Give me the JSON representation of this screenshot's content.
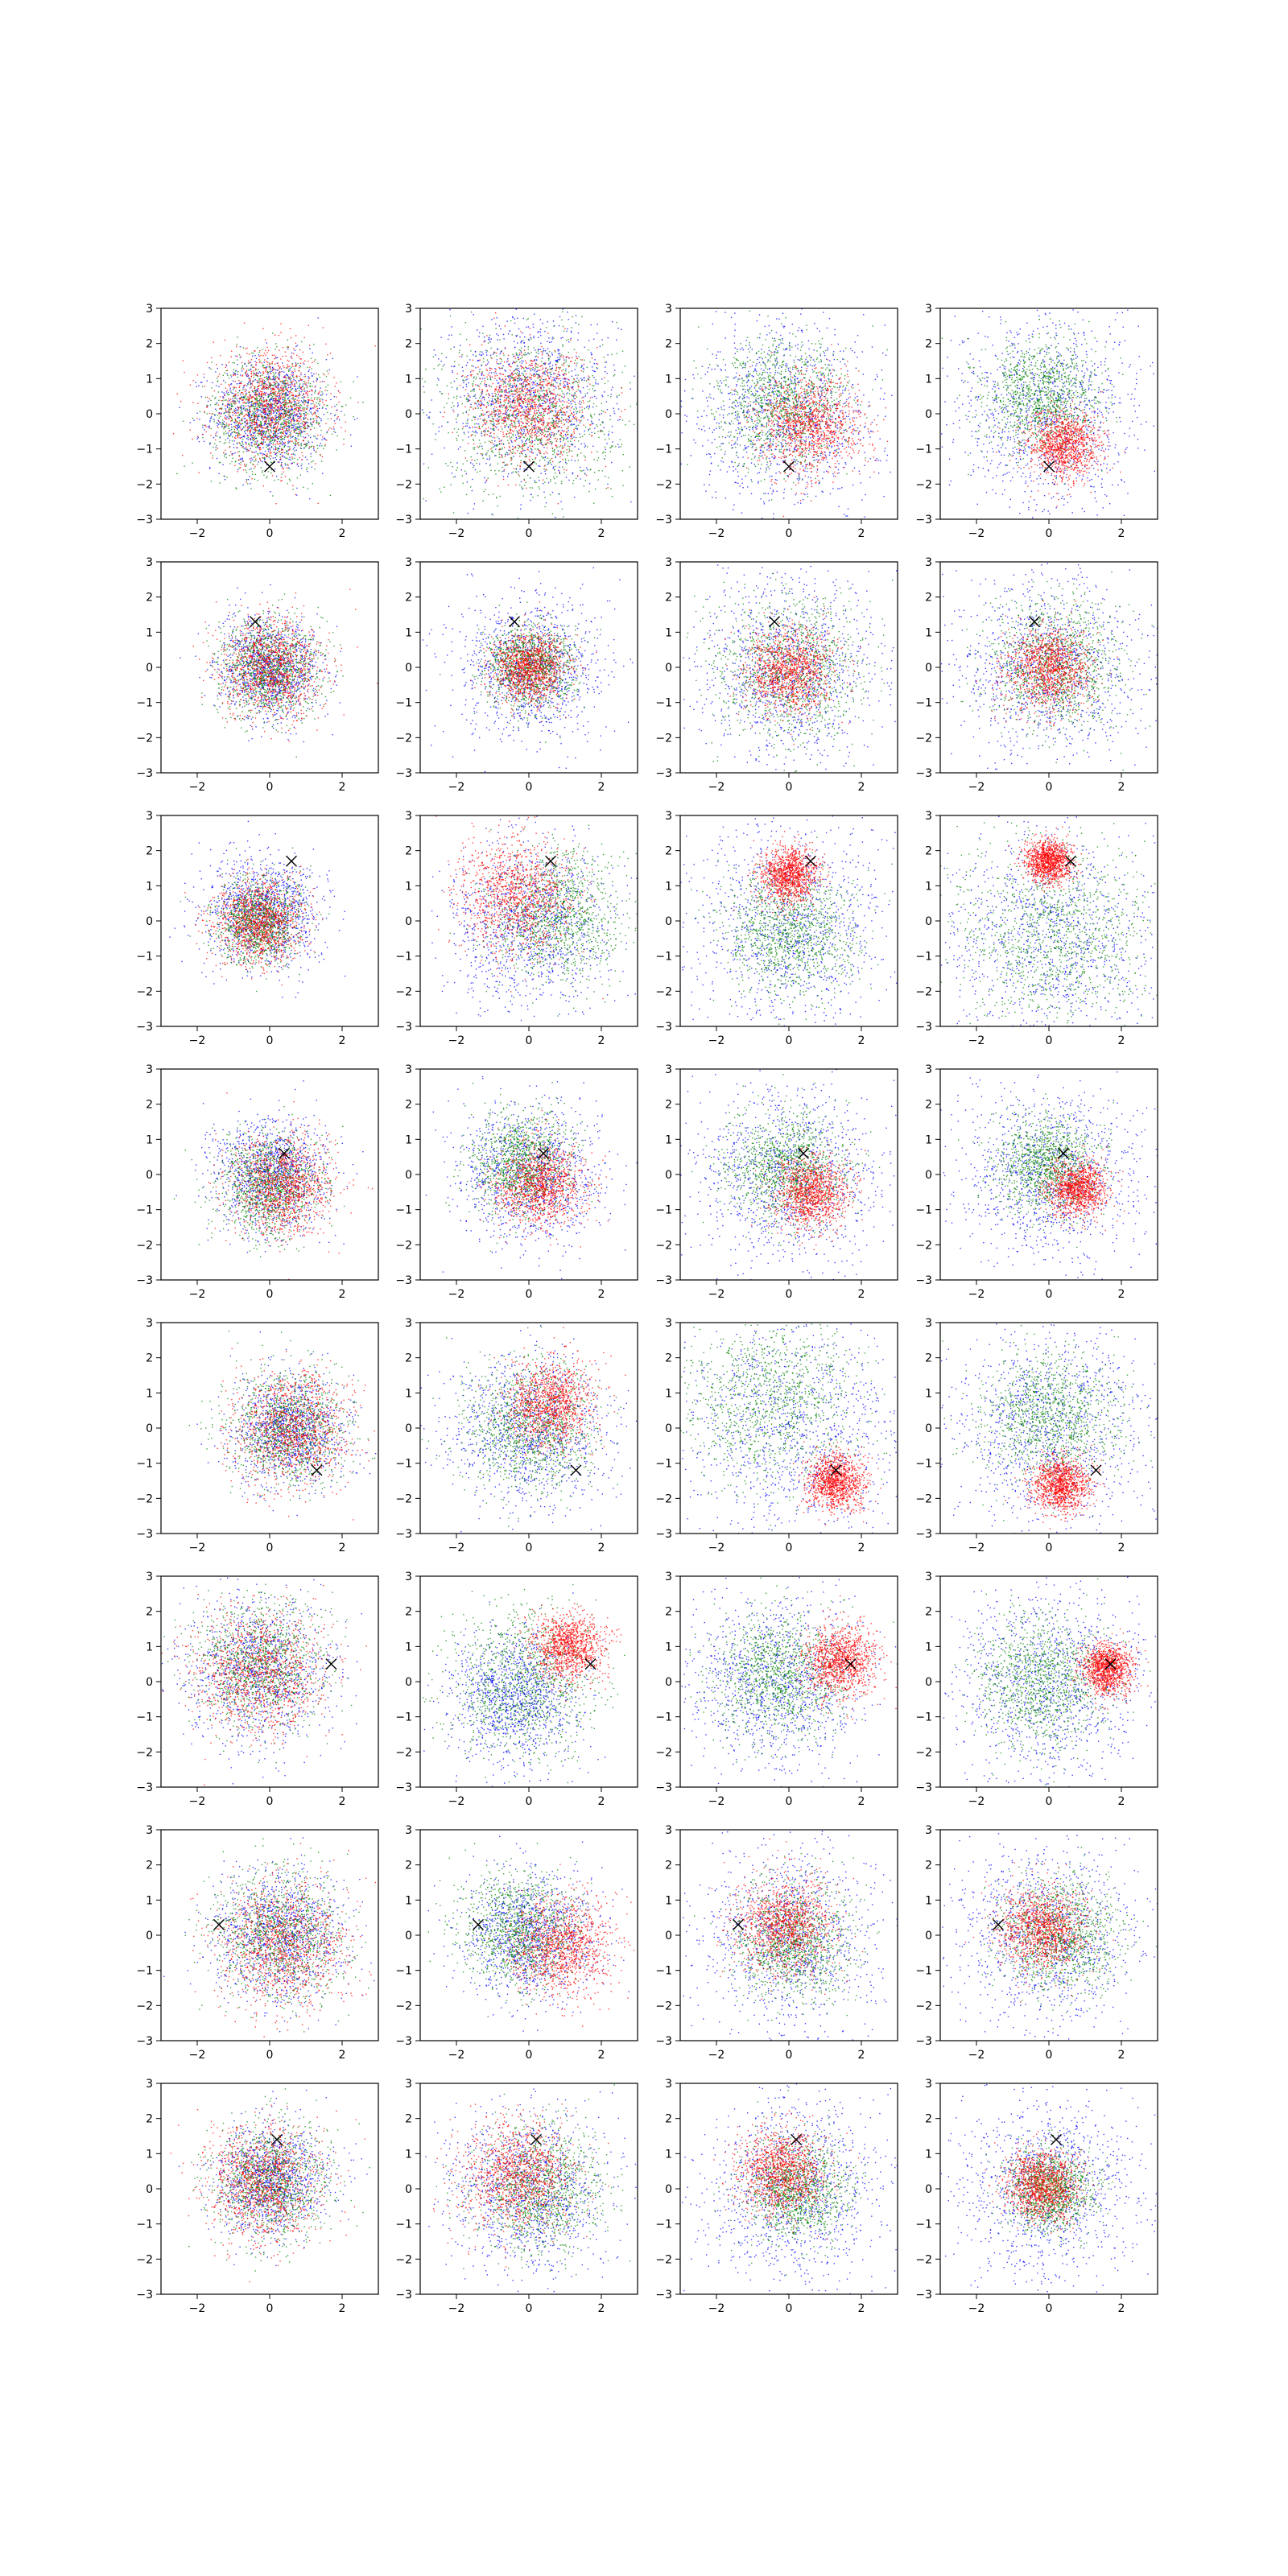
{
  "chart_data": {
    "type": "scatter",
    "layout": {
      "rows": 8,
      "cols": 4
    },
    "xlim": [
      -3,
      3
    ],
    "ylim": [
      -3,
      3
    ],
    "xticks": [
      -2,
      0,
      2
    ],
    "yticks": [
      -3,
      -2,
      -1,
      0,
      1,
      2,
      3
    ],
    "grid": false,
    "legend": "none",
    "colors": {
      "series_a": "#0000ff",
      "series_b": "#008000",
      "series_c": "#ff0000",
      "marker": "#000000"
    },
    "points_per_series": 1100,
    "marker_glyph": "x",
    "rows": [
      {
        "marker": [
          0,
          -1.5
        ],
        "panels": [
          {
            "series": [
              {
                "cx": 0,
                "cy": 0,
                "sd": 0.8
              },
              {
                "cx": 0,
                "cy": 0,
                "sd": 0.8
              },
              {
                "cx": 0,
                "cy": 0.2,
                "sd": 0.8
              }
            ]
          },
          {
            "series": [
              {
                "cx": 0,
                "cy": 0.5,
                "sd": 1.2
              },
              {
                "cx": 0,
                "cy": 0,
                "sd": 1.2
              },
              {
                "cx": 0,
                "cy": 0.2,
                "sd": 0.8
              }
            ]
          },
          {
            "series": [
              {
                "cx": 0,
                "cy": 0,
                "sd": 1.3
              },
              {
                "cx": -0.2,
                "cy": 0.3,
                "sd": 0.9
              },
              {
                "cx": 0.6,
                "cy": -0.3,
                "sd": 0.7
              }
            ]
          },
          {
            "series": [
              {
                "cx": 0,
                "cy": 0,
                "sd": 1.4
              },
              {
                "cx": -0.2,
                "cy": 0.5,
                "sd": 0.8
              },
              {
                "cx": 0.4,
                "cy": -0.9,
                "sd": 0.5
              }
            ]
          }
        ]
      },
      {
        "marker": [
          -0.4,
          1.3
        ],
        "panels": [
          {
            "series": [
              {
                "cx": 0,
                "cy": 0,
                "sd": 0.7
              },
              {
                "cx": 0,
                "cy": 0,
                "sd": 0.7
              },
              {
                "cx": 0,
                "cy": 0,
                "sd": 0.7
              }
            ]
          },
          {
            "series": [
              {
                "cx": 0,
                "cy": 0,
                "sd": 1.0
              },
              {
                "cx": 0,
                "cy": 0,
                "sd": 0.6
              },
              {
                "cx": 0,
                "cy": 0,
                "sd": 0.5
              }
            ]
          },
          {
            "series": [
              {
                "cx": 0,
                "cy": 0,
                "sd": 1.3
              },
              {
                "cx": 0,
                "cy": 0,
                "sd": 1.0
              },
              {
                "cx": 0,
                "cy": -0.1,
                "sd": 0.6
              }
            ]
          },
          {
            "series": [
              {
                "cx": 0,
                "cy": 0,
                "sd": 1.3
              },
              {
                "cx": 0.2,
                "cy": 0,
                "sd": 0.9
              },
              {
                "cx": 0,
                "cy": 0,
                "sd": 0.6
              }
            ]
          }
        ]
      },
      {
        "marker": [
          0.6,
          1.7
        ],
        "panels": [
          {
            "series": [
              {
                "cx": -0.2,
                "cy": 0.3,
                "sd": 0.8
              },
              {
                "cx": -0.3,
                "cy": 0,
                "sd": 0.6
              },
              {
                "cx": -0.3,
                "cy": 0,
                "sd": 0.6
              }
            ]
          },
          {
            "series": [
              {
                "cx": 0,
                "cy": 0,
                "sd": 1.1
              },
              {
                "cx": 0.8,
                "cy": 0.2,
                "sd": 0.9
              },
              {
                "cx": -0.4,
                "cy": 0.7,
                "sd": 0.8
              }
            ]
          },
          {
            "series": [
              {
                "cx": 0,
                "cy": -0.2,
                "sd": 1.4
              },
              {
                "cx": 0,
                "cy": -0.3,
                "sd": 0.9
              },
              {
                "cx": 0,
                "cy": 1.3,
                "sd": 0.4
              }
            ]
          },
          {
            "series": [
              {
                "cx": 0,
                "cy": -0.5,
                "sd": 1.6
              },
              {
                "cx": 0,
                "cy": -0.4,
                "sd": 1.3
              },
              {
                "cx": 0,
                "cy": 1.7,
                "sd": 0.3
              }
            ]
          }
        ]
      },
      {
        "marker": [
          0.4,
          0.6
        ],
        "panels": [
          {
            "series": [
              {
                "cx": 0,
                "cy": 0,
                "sd": 0.8
              },
              {
                "cx": 0,
                "cy": -0.3,
                "sd": 0.7
              },
              {
                "cx": 0.3,
                "cy": -0.3,
                "sd": 0.7
              }
            ]
          },
          {
            "series": [
              {
                "cx": 0,
                "cy": 0,
                "sd": 1.0
              },
              {
                "cx": -0.2,
                "cy": 0.3,
                "sd": 0.7
              },
              {
                "cx": 0.3,
                "cy": -0.3,
                "sd": 0.6
              }
            ]
          },
          {
            "series": [
              {
                "cx": 0,
                "cy": 0,
                "sd": 1.3
              },
              {
                "cx": -0.1,
                "cy": 0.2,
                "sd": 0.8
              },
              {
                "cx": 0.6,
                "cy": -0.5,
                "sd": 0.5
              }
            ]
          },
          {
            "series": [
              {
                "cx": 0,
                "cy": 0,
                "sd": 1.3
              },
              {
                "cx": -0.1,
                "cy": 0.3,
                "sd": 0.7
              },
              {
                "cx": 0.8,
                "cy": -0.4,
                "sd": 0.4
              }
            ]
          }
        ]
      },
      {
        "marker": [
          1.3,
          -1.2
        ],
        "panels": [
          {
            "series": [
              {
                "cx": 0.5,
                "cy": 0,
                "sd": 0.8
              },
              {
                "cx": 0.5,
                "cy": 0,
                "sd": 0.8
              },
              {
                "cx": 0.6,
                "cy": 0,
                "sd": 0.8
              }
            ]
          },
          {
            "series": [
              {
                "cx": 0,
                "cy": 0,
                "sd": 1.1
              },
              {
                "cx": 0,
                "cy": 0,
                "sd": 0.9
              },
              {
                "cx": 0.6,
                "cy": 0.7,
                "sd": 0.6
              }
            ]
          },
          {
            "series": [
              {
                "cx": 0,
                "cy": 0,
                "sd": 1.6
              },
              {
                "cx": -0.5,
                "cy": 0.8,
                "sd": 1.2
              },
              {
                "cx": 1.3,
                "cy": -1.5,
                "sd": 0.4
              }
            ]
          },
          {
            "series": [
              {
                "cx": 0,
                "cy": 0,
                "sd": 1.4
              },
              {
                "cx": 0,
                "cy": 0.3,
                "sd": 0.9
              },
              {
                "cx": 0.3,
                "cy": -1.6,
                "sd": 0.4
              }
            ]
          }
        ]
      },
      {
        "marker": [
          1.7,
          0.5
        ],
        "panels": [
          {
            "series": [
              {
                "cx": -0.3,
                "cy": 0.3,
                "sd": 1.0
              },
              {
                "cx": -0.3,
                "cy": 0.5,
                "sd": 0.9
              },
              {
                "cx": -0.3,
                "cy": 0.3,
                "sd": 0.9
              }
            ]
          },
          {
            "series": [
              {
                "cx": -0.4,
                "cy": -0.4,
                "sd": 0.9
              },
              {
                "cx": -0.2,
                "cy": 0,
                "sd": 1.0
              },
              {
                "cx": 1.1,
                "cy": 1.0,
                "sd": 0.5
              }
            ]
          },
          {
            "series": [
              {
                "cx": -0.4,
                "cy": 0,
                "sd": 1.2
              },
              {
                "cx": -0.3,
                "cy": 0.2,
                "sd": 0.9
              },
              {
                "cx": 1.4,
                "cy": 0.6,
                "sd": 0.5
              }
            ]
          },
          {
            "series": [
              {
                "cx": 0,
                "cy": 0,
                "sd": 1.4
              },
              {
                "cx": -0.2,
                "cy": 0,
                "sd": 0.9
              },
              {
                "cx": 1.6,
                "cy": 0.4,
                "sd": 0.35
              }
            ]
          }
        ]
      },
      {
        "marker": [
          -1.4,
          0.3
        ],
        "panels": [
          {
            "series": [
              {
                "cx": 0.3,
                "cy": 0,
                "sd": 0.9
              },
              {
                "cx": 0.3,
                "cy": 0,
                "sd": 0.9
              },
              {
                "cx": 0.4,
                "cy": -0.2,
                "sd": 0.9
              }
            ]
          },
          {
            "series": [
              {
                "cx": 0,
                "cy": 0,
                "sd": 0.9
              },
              {
                "cx": -0.2,
                "cy": 0.2,
                "sd": 0.8
              },
              {
                "cx": 0.9,
                "cy": -0.3,
                "sd": 0.7
              }
            ]
          },
          {
            "series": [
              {
                "cx": 0,
                "cy": 0,
                "sd": 1.2
              },
              {
                "cx": 0.1,
                "cy": -0.2,
                "sd": 0.8
              },
              {
                "cx": -0.1,
                "cy": 0.3,
                "sd": 0.7
              }
            ]
          },
          {
            "series": [
              {
                "cx": 0,
                "cy": 0,
                "sd": 1.3
              },
              {
                "cx": 0.3,
                "cy": 0,
                "sd": 0.8
              },
              {
                "cx": -0.2,
                "cy": 0.2,
                "sd": 0.6
              }
            ]
          }
        ]
      },
      {
        "marker": [
          0.2,
          1.4
        ],
        "panels": [
          {
            "series": [
              {
                "cx": 0,
                "cy": 0.3,
                "sd": 0.8
              },
              {
                "cx": 0,
                "cy": 0.2,
                "sd": 0.8
              },
              {
                "cx": -0.2,
                "cy": 0.2,
                "sd": 0.8
              }
            ]
          },
          {
            "series": [
              {
                "cx": 0,
                "cy": 0,
                "sd": 1.1
              },
              {
                "cx": 0.3,
                "cy": 0,
                "sd": 0.9
              },
              {
                "cx": -0.3,
                "cy": 0.4,
                "sd": 0.8
              }
            ]
          },
          {
            "series": [
              {
                "cx": 0,
                "cy": 0,
                "sd": 1.3
              },
              {
                "cx": 0.2,
                "cy": 0,
                "sd": 0.7
              },
              {
                "cx": -0.2,
                "cy": 0.5,
                "sd": 0.6
              }
            ]
          },
          {
            "series": [
              {
                "cx": 0,
                "cy": 0,
                "sd": 1.3
              },
              {
                "cx": 0,
                "cy": 0,
                "sd": 0.6
              },
              {
                "cx": -0.2,
                "cy": 0.1,
                "sd": 0.5
              }
            ]
          }
        ]
      }
    ]
  }
}
